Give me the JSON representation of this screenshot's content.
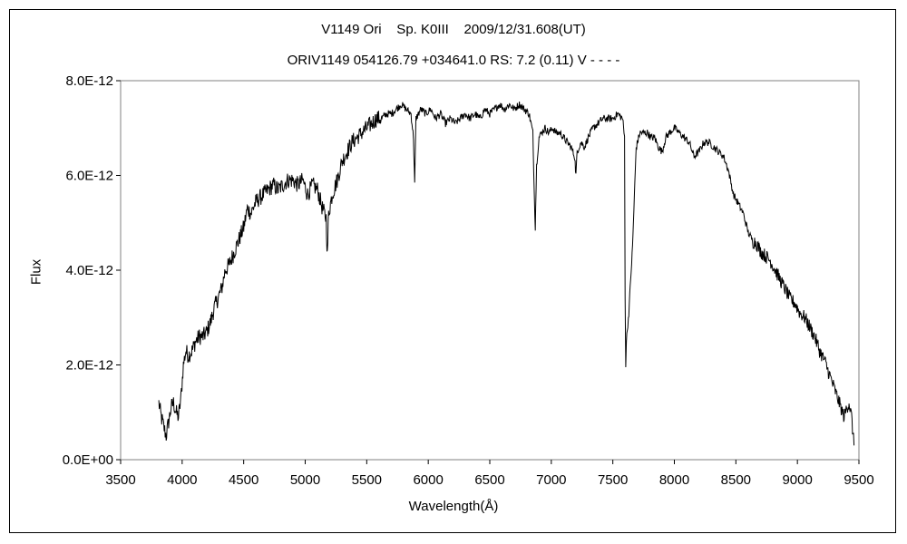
{
  "chart_data": {
    "type": "line",
    "title": "V1149 Ori    Sp. K0III    2009/12/31.608(UT)",
    "subtitle": "ORIV1149 054126.79 +034641.0 RS: 7.2 (0.11) V - - - -",
    "xlabel": "Wavelength(Å)",
    "ylabel": "Flux",
    "xlim": [
      3500,
      9500
    ],
    "ylim": [
      0,
      8e-12
    ],
    "x_ticks": [
      "3500",
      "4000",
      "4500",
      "5000",
      "5500",
      "6000",
      "6500",
      "7000",
      "7500",
      "8000",
      "8500",
      "9000",
      "9500"
    ],
    "y_ticks": [
      "0.0E+00",
      "2.0E-12",
      "4.0E-12",
      "6.0E-12",
      "8.0E-12"
    ],
    "grid": false,
    "legend": "none",
    "series": [
      {
        "color": "#000000",
        "x": [
          3810,
          3830,
          3850,
          3870,
          3890,
          3910,
          3930,
          3950,
          3970,
          3990,
          4010,
          4030,
          4050,
          4080,
          4110,
          4140,
          4170,
          4200,
          4230,
          4260,
          4290,
          4320,
          4350,
          4380,
          4410,
          4440,
          4470,
          4500,
          4530,
          4560,
          4590,
          4620,
          4660,
          4700,
          4740,
          4780,
          4820,
          4860,
          4900,
          4940,
          4980,
          5020,
          5060,
          5100,
          5140,
          5170,
          5180,
          5190,
          5220,
          5260,
          5300,
          5340,
          5380,
          5420,
          5460,
          5500,
          5540,
          5580,
          5620,
          5660,
          5700,
          5740,
          5780,
          5820,
          5860,
          5880,
          5890,
          5900,
          5940,
          5980,
          6020,
          6060,
          6100,
          6140,
          6180,
          6220,
          6260,
          6300,
          6340,
          6380,
          6420,
          6460,
          6500,
          6540,
          6580,
          6620,
          6660,
          6700,
          6740,
          6780,
          6820,
          6850,
          6860,
          6870,
          6880,
          6900,
          6920,
          6950,
          6980,
          7010,
          7040,
          7070,
          7100,
          7130,
          7160,
          7190,
          7200,
          7210,
          7240,
          7270,
          7300,
          7340,
          7380,
          7420,
          7460,
          7500,
          7540,
          7580,
          7595,
          7600,
          7605,
          7610,
          7630,
          7660,
          7690,
          7720,
          7750,
          7780,
          7810,
          7840,
          7870,
          7900,
          7930,
          7960,
          8000,
          8040,
          8080,
          8120,
          8160,
          8200,
          8240,
          8280,
          8320,
          8360,
          8400,
          8440,
          8480,
          8520,
          8540,
          8560,
          8600,
          8640,
          8660,
          8680,
          8700,
          8740,
          8780,
          8820,
          8860,
          8900,
          8940,
          8980,
          9020,
          9060,
          9100,
          9140,
          9180,
          9220,
          9260,
          9300,
          9340,
          9380,
          9400,
          9420,
          9440,
          9460
        ],
        "y": [
          1.2e-12,
          9e-13,
          7e-13,
          5e-13,
          8e-13,
          1.1e-12,
          1.2e-12,
          1e-12,
          9e-13,
          1.3e-12,
          2e-12,
          2.3e-12,
          2.2e-12,
          2.3e-12,
          2.5e-12,
          2.6e-12,
          2.6e-12,
          2.7e-12,
          2.9e-12,
          3.2e-12,
          3.4e-12,
          3.6e-12,
          4e-12,
          4.1e-12,
          4.3e-12,
          4.5e-12,
          4.7e-12,
          4.9e-12,
          5.3e-12,
          5.2e-12,
          5.4e-12,
          5.5e-12,
          5.6e-12,
          5.7e-12,
          5.8e-12,
          5.7e-12,
          5.8e-12,
          5.9e-12,
          5.9e-12,
          5.8e-12,
          5.9e-12,
          5.6e-12,
          5.8e-12,
          5.7e-12,
          5.3e-12,
          5.1e-12,
          4.3e-12,
          5.2e-12,
          5.6e-12,
          5.9e-12,
          6.3e-12,
          6.5e-12,
          6.7e-12,
          6.8e-12,
          6.9e-12,
          7e-12,
          7.1e-12,
          7.2e-12,
          7.2e-12,
          7.3e-12,
          7.3e-12,
          7.4e-12,
          7.5e-12,
          7.4e-12,
          7.3e-12,
          6.8e-12,
          5.8e-12,
          7.2e-12,
          7.4e-12,
          7.3e-12,
          7.4e-12,
          7.2e-12,
          7.3e-12,
          7.1e-12,
          7.2e-12,
          7.1e-12,
          7.2e-12,
          7.3e-12,
          7.2e-12,
          7.3e-12,
          7.2e-12,
          7.4e-12,
          7.3e-12,
          7.4e-12,
          7.5e-12,
          7.4e-12,
          7.5e-12,
          7.4e-12,
          7.5e-12,
          7.4e-12,
          7.3e-12,
          6.9e-12,
          5.8e-12,
          4.9e-12,
          6.2e-12,
          6.8e-12,
          6.9e-12,
          7e-12,
          6.9e-12,
          7e-12,
          6.9e-12,
          6.9e-12,
          6.8e-12,
          6.7e-12,
          6.6e-12,
          6.4e-12,
          6e-12,
          6.5e-12,
          6.7e-12,
          6.6e-12,
          6.8e-12,
          7e-12,
          7.1e-12,
          7.2e-12,
          7.2e-12,
          7.2e-12,
          7.3e-12,
          7.2e-12,
          6.8e-12,
          3.5e-12,
          2e-12,
          2.5e-12,
          3.1e-12,
          4.5e-12,
          6.6e-12,
          6.9e-12,
          6.9e-12,
          6.9e-12,
          6.8e-12,
          6.8e-12,
          6.6e-12,
          6.5e-12,
          6.8e-12,
          6.9e-12,
          7e-12,
          6.9e-12,
          6.8e-12,
          6.7e-12,
          6.4e-12,
          6.5e-12,
          6.7e-12,
          6.7e-12,
          6.6e-12,
          6.5e-12,
          6.4e-12,
          6.1e-12,
          5.6e-12,
          5.4e-12,
          5.3e-12,
          5.2e-12,
          4.8e-12,
          4.6e-12,
          4.6e-12,
          4.5e-12,
          4.4e-12,
          4.3e-12,
          4.2e-12,
          4e-12,
          3.8e-12,
          3.6e-12,
          3.4e-12,
          3.3e-12,
          3.1e-12,
          3e-12,
          2.8e-12,
          2.6e-12,
          2.3e-12,
          2.1e-12,
          1.8e-12,
          1.5e-12,
          1.2e-12,
          9e-13,
          1.1e-12,
          1.2e-12,
          9e-13,
          3e-13
        ]
      }
    ]
  }
}
